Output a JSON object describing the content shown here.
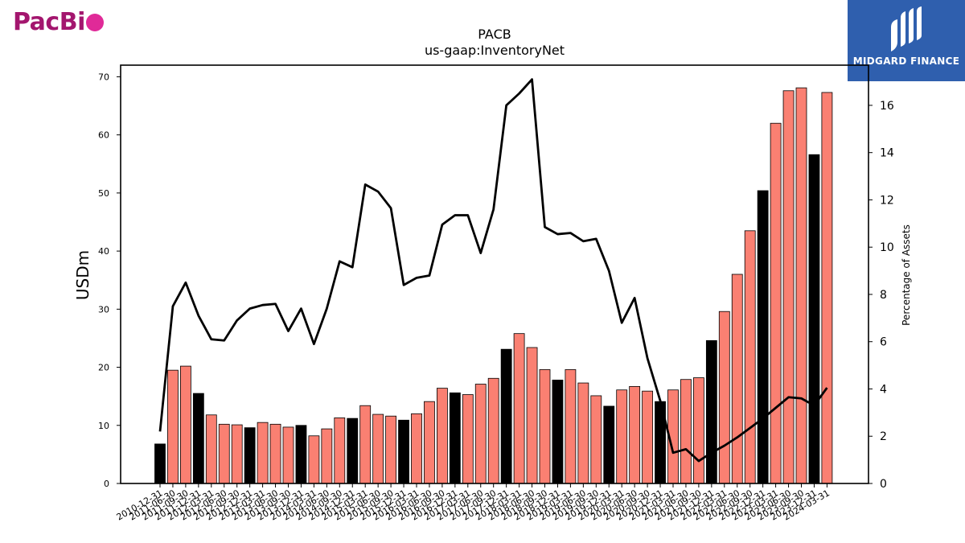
{
  "brand": {
    "company_logo_text_1": "PacBi",
    "finance_logo_text": "MIDGARD FINANCE"
  },
  "colors": {
    "bar_normal": "#fa8072",
    "bar_highlight": "#000000",
    "line": "#000000",
    "pacbio_dark": "#a3166e",
    "pacbio_light": "#e02a98",
    "midgard_blue": "#2f5fae"
  },
  "chart_data": {
    "type": "bar",
    "title": "PACB",
    "subtitle": "us-gaap:InventoryNet",
    "ylabel": "USDm",
    "y2label": "Percentage of Assets",
    "ylim": [
      0,
      72
    ],
    "y2lim": [
      0,
      17.7
    ],
    "yticks": [
      0,
      10,
      20,
      30,
      40,
      50,
      60,
      70
    ],
    "y2ticks": [
      0,
      2,
      4,
      6,
      8,
      10,
      12,
      14,
      16
    ],
    "categories": [
      "2010-12-31",
      "2011-06-30",
      "2011-09-30",
      "2011-12-31",
      "2012-03-31",
      "2012-06-30",
      "2012-09-30",
      "2012-12-31",
      "2013-03-31",
      "2013-06-30",
      "2013-09-30",
      "2013-12-31",
      "2014-03-31",
      "2014-06-30",
      "2014-09-30",
      "2014-12-31",
      "2015-03-31",
      "2015-06-30",
      "2015-09-30",
      "2015-12-31",
      "2016-03-31",
      "2016-06-30",
      "2016-09-30",
      "2016-12-31",
      "2017-03-31",
      "2017-06-30",
      "2017-09-30",
      "2017-12-31",
      "2018-03-31",
      "2018-06-30",
      "2018-09-30",
      "2018-12-31",
      "2019-03-31",
      "2019-06-30",
      "2019-09-30",
      "2019-12-31",
      "2020-03-31",
      "2020-06-30",
      "2020-09-30",
      "2020-12-31",
      "2021-03-31",
      "2021-06-30",
      "2021-09-30",
      "2021-12-31",
      "2022-03-31",
      "2022-06-30",
      "2022-09-30",
      "2022-12-31",
      "2023-03-31",
      "2023-06-30",
      "2023-09-30",
      "2023-12-31",
      "2024-03-31"
    ],
    "series": [
      {
        "axis": "left",
        "type": "bar",
        "values": [
          6.8,
          19.5,
          20.2,
          15.5,
          11.8,
          10.2,
          10.1,
          9.6,
          10.5,
          10.2,
          9.7,
          10.0,
          8.2,
          9.4,
          11.3,
          11.2,
          13.4,
          11.9,
          11.6,
          10.9,
          12.0,
          14.1,
          16.4,
          15.6,
          15.3,
          17.1,
          18.1,
          23.1,
          25.8,
          23.4,
          19.6,
          17.8,
          19.6,
          17.3,
          15.1,
          13.3,
          16.1,
          16.7,
          15.9,
          14.1,
          16.1,
          17.9,
          18.2,
          24.6,
          29.6,
          36.0,
          43.5,
          50.4,
          62.0,
          67.6,
          68.1,
          56.6,
          67.3
        ],
        "highlight": [
          true,
          false,
          false,
          true,
          false,
          false,
          false,
          true,
          false,
          false,
          false,
          true,
          false,
          false,
          false,
          true,
          false,
          false,
          false,
          true,
          false,
          false,
          false,
          true,
          false,
          false,
          false,
          true,
          false,
          false,
          false,
          true,
          false,
          false,
          false,
          true,
          false,
          false,
          false,
          true,
          false,
          false,
          false,
          true,
          false,
          false,
          false,
          true,
          false,
          false,
          false,
          true,
          false
        ]
      },
      {
        "axis": "right",
        "type": "line",
        "values": [
          2.2,
          7.5,
          8.5,
          7.1,
          6.1,
          6.05,
          6.9,
          7.4,
          7.55,
          7.6,
          6.45,
          7.4,
          5.9,
          7.4,
          9.4,
          9.15,
          12.65,
          12.35,
          11.65,
          8.4,
          8.7,
          8.8,
          10.95,
          11.35,
          11.35,
          9.75,
          11.6,
          16.0,
          16.5,
          17.1,
          10.85,
          10.55,
          10.6,
          10.25,
          10.35,
          9.0,
          6.8,
          7.85,
          5.3,
          3.5,
          1.3,
          1.45,
          0.95,
          1.3,
          1.6,
          1.95,
          2.35,
          2.75,
          3.2,
          3.65,
          3.6,
          3.3,
          4.05
        ]
      }
    ]
  }
}
